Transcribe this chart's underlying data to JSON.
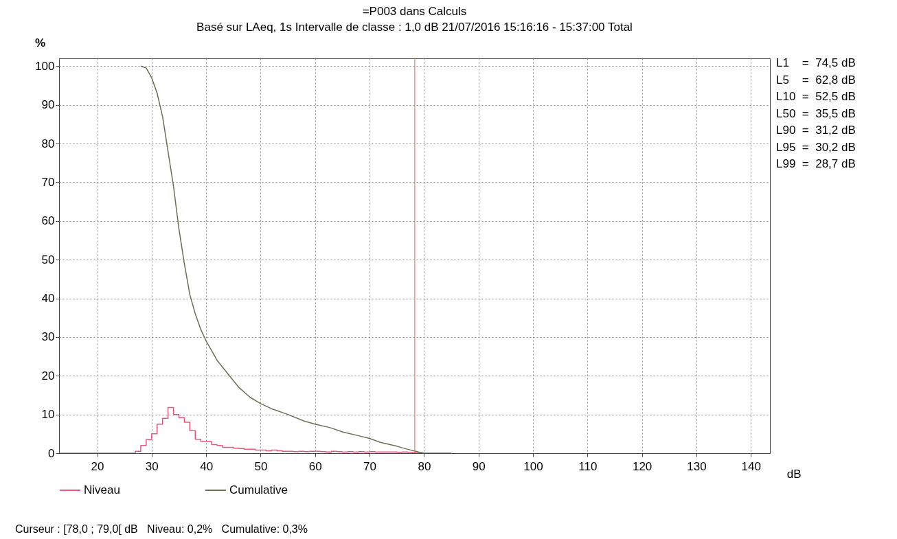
{
  "chart_data": {
    "type": "line",
    "title": "=P003 dans Calculs",
    "subtitle": "Basé sur LAeq, 1s Intervalle de classe : 1,0 dB  21/07/2016 15:16:16 - 15:37:00  Total",
    "xlabel": "dB",
    "ylabel": "%",
    "series": [
      {
        "name": "Niveau",
        "type": "step",
        "color": "#e8577a",
        "x": [
          13,
          27,
          28,
          29,
          30,
          31,
          32,
          33,
          34,
          35,
          36,
          37,
          38,
          39,
          40,
          41,
          42,
          43,
          44,
          45,
          46,
          47,
          48,
          49,
          50,
          51,
          52,
          53,
          54,
          55,
          56,
          57,
          58,
          59,
          60,
          61,
          62,
          63,
          64,
          65,
          66,
          67,
          68,
          69,
          70,
          71,
          72,
          73,
          74,
          75,
          76,
          77,
          78,
          79,
          80
        ],
        "values": [
          0,
          0.5,
          2,
          3.5,
          5,
          7.5,
          9,
          11.8,
          10,
          9.2,
          8,
          5.8,
          3.6,
          3,
          3,
          2.2,
          2,
          1.5,
          1.5,
          1.3,
          1.2,
          1,
          1,
          0.8,
          0.8,
          0.6,
          0.8,
          0.6,
          0.5,
          0.5,
          0.4,
          0.5,
          0.4,
          0.5,
          0.5,
          0.4,
          0.3,
          0.5,
          0.4,
          0.3,
          0.4,
          0.3,
          0.4,
          0.3,
          0.4,
          0.3,
          0.3,
          0.3,
          0.3,
          0.2,
          0.3,
          0.2,
          0.2,
          0,
          0
        ]
      },
      {
        "name": "Cumulative",
        "color": "#6b7050",
        "x": [
          28,
          29,
          30,
          31,
          32,
          33,
          34,
          35,
          36,
          37,
          38,
          39,
          40,
          42,
          44,
          46,
          48,
          50,
          52,
          55,
          58,
          60,
          63,
          65,
          68,
          70,
          72,
          75,
          77,
          79,
          80,
          85
        ],
        "values": [
          100,
          99.5,
          97,
          93,
          87,
          78,
          69,
          58,
          49,
          41,
          36,
          32,
          29,
          24,
          20.5,
          17,
          14.5,
          12.8,
          11.5,
          10,
          8.3,
          7.5,
          6.5,
          5.5,
          4.5,
          3.8,
          2.8,
          1.8,
          1,
          0.3,
          0,
          0
        ]
      }
    ],
    "xlim": [
      13,
      143.5
    ],
    "xticks": [
      20,
      30,
      40,
      50,
      60,
      70,
      80,
      90,
      100,
      110,
      120,
      130,
      140
    ],
    "ylim": [
      0,
      102
    ],
    "yticks": [
      0,
      10,
      20,
      30,
      40,
      50,
      60,
      70,
      80,
      90,
      100
    ],
    "grid": true,
    "legend": "bottom",
    "ref_lines": [
      {
        "axis": "x",
        "value": 78.3,
        "label": null,
        "color": "#e06060"
      }
    ],
    "annotations": [
      "L1    =  74,5 dB",
      "L5    =  62,8 dB",
      "L10  =  52,5 dB",
      "L50  =  35,5 dB",
      "L90  =  31,2 dB",
      "L95  =  30,2 dB",
      "L99  =  28,7 dB",
      "Curseur : [78,0 ; 79,0[ dB   Niveau: 0,2%   Cumulative: 0,3%"
    ]
  }
}
